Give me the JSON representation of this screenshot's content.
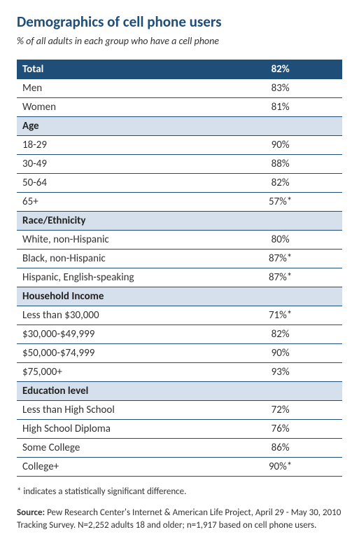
{
  "title": "Demographics of cell phone users",
  "subtitle": "% of all adults in each group who have a cell phone",
  "total": {
    "label": "Total",
    "value": "82%"
  },
  "sections": [
    {
      "header": null,
      "rows": [
        {
          "label": "Men",
          "value": "83%"
        },
        {
          "label": "Women",
          "value": "81%"
        }
      ]
    },
    {
      "header": "Age",
      "rows": [
        {
          "label": "18-29",
          "value": "90%"
        },
        {
          "label": "30-49",
          "value": "88%"
        },
        {
          "label": "50-64",
          "value": "82%"
        },
        {
          "label": "65+",
          "value": "57%*"
        }
      ]
    },
    {
      "header": "Race/Ethnicity",
      "rows": [
        {
          "label": "White, non-Hispanic",
          "value": "80%"
        },
        {
          "label": "Black, non-Hispanic",
          "value": "87%*"
        },
        {
          "label": "Hispanic, English-speaking",
          "value": "87%*"
        }
      ]
    },
    {
      "header": "Household Income",
      "rows": [
        {
          "label": "Less than $30,000",
          "value": "71%*"
        },
        {
          "label": "$30,000-$49,999",
          "value": "82%"
        },
        {
          "label": "$50,000-$74,999",
          "value": "90%"
        },
        {
          "label": "$75,000+",
          "value": "93%"
        }
      ]
    },
    {
      "header": "Education level",
      "rows": [
        {
          "label": "Less than High School",
          "value": "72%"
        },
        {
          "label": "High School Diploma",
          "value": "76%"
        },
        {
          "label": "Some College",
          "value": "86%"
        },
        {
          "label": "College+",
          "value": "90%*"
        }
      ]
    }
  ],
  "footnote": "* indicates a statistically significant difference.",
  "source_label": "Source:",
  "source_text": " Pew Research Center's Internet & American Life Project, April 29 - May 30, 2010 Tracking Survey. N=2,252 adults 18 and older; n=1,917 based on cell phone users.",
  "colors": {
    "header_bg": "#1f4e79",
    "section_bg": "#d6e0ec",
    "rule": "#1f4e79",
    "title": "#1f4e79"
  }
}
